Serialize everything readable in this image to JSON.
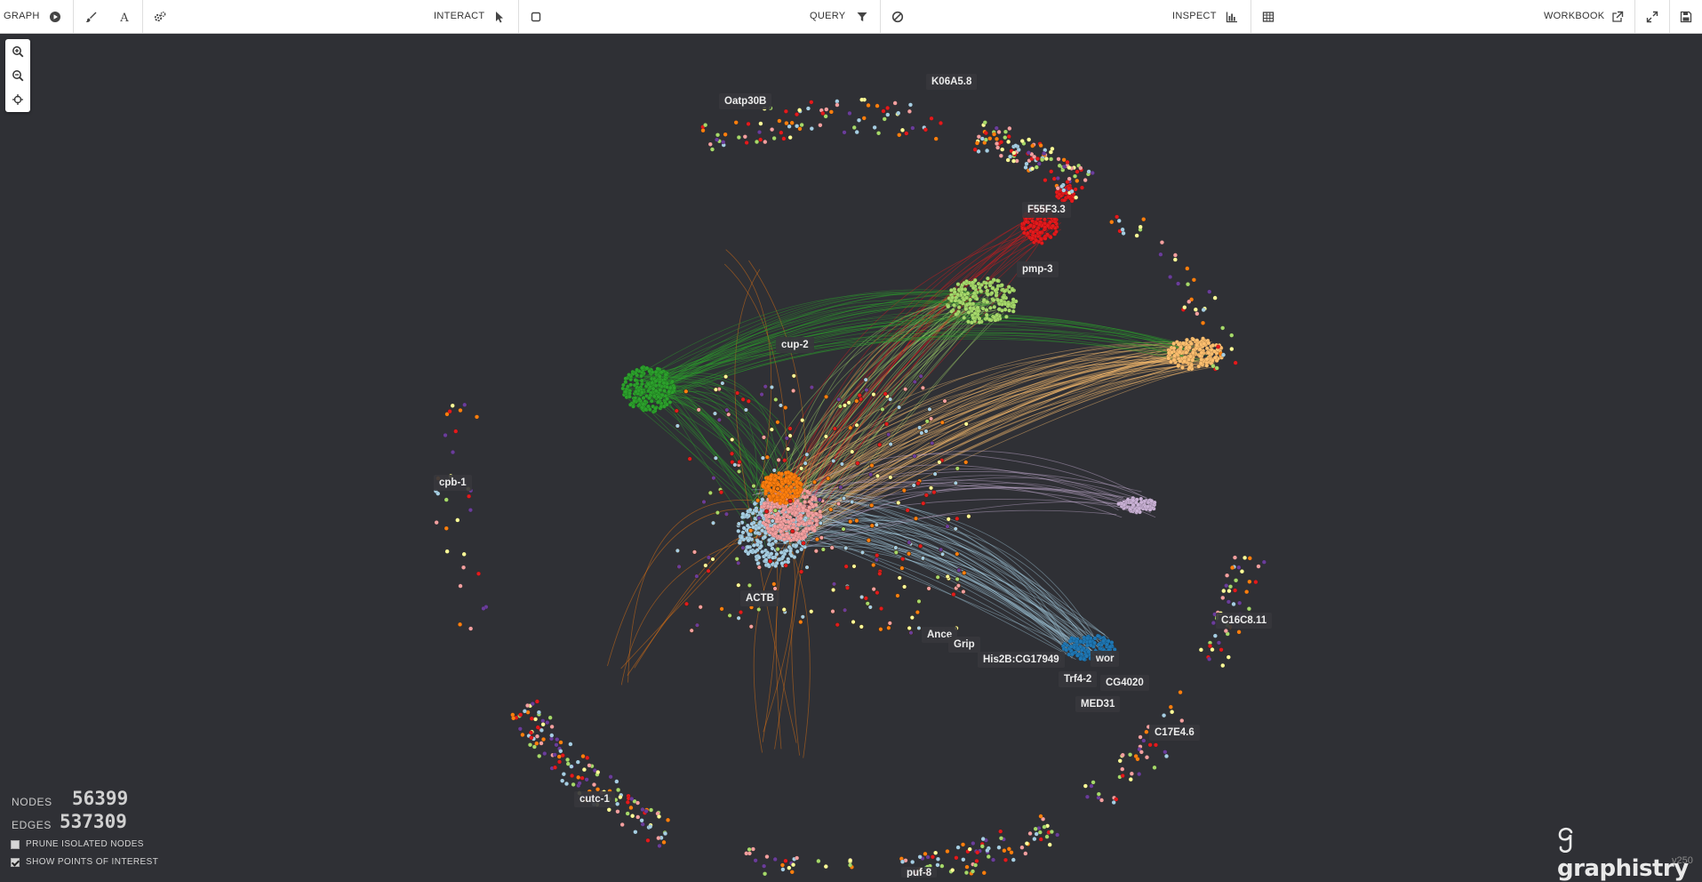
{
  "toolbar": {
    "graph": "GRAPH",
    "interact": "INTERACT",
    "query": "QUERY",
    "inspect": "INSPECT",
    "workbook": "WORKBOOK"
  },
  "icons": {
    "play": "play-circle-icon",
    "brush": "brush-icon",
    "text": "font-icon",
    "settings": "cogs-icon",
    "pointer": "pointer-icon",
    "select": "square-icon",
    "filter": "filter-icon",
    "exclude": "ban-icon",
    "histogram": "bar-chart-icon",
    "table": "table-icon",
    "external": "external-link-icon",
    "fullscreen": "expand-icon",
    "save": "save-icon",
    "zoom_in": "zoom-in-icon",
    "zoom_out": "zoom-out-icon",
    "center": "crosshair-icon"
  },
  "labels": [
    "K06A5.8",
    "Oatp30B",
    "F55F3.3",
    "pmp-3",
    "cup-2",
    "cpb-1",
    "ACTB",
    "C16C8.11",
    "Ance",
    "Grip",
    "His2B:CG17949",
    "wor",
    "Trf4-2",
    "CG4020",
    "MED31",
    "C17E4.6",
    "cutc-1",
    "puf-8"
  ],
  "stats": {
    "nodes_label": "NODES",
    "nodes_value": "56399",
    "edges_label": "EDGES",
    "edges_value": "537309"
  },
  "options": {
    "prune_label": "PRUNE ISOLATED NODES",
    "prune_checked": false,
    "poi_label": "SHOW POINTS OF INTEREST",
    "poi_checked": true
  },
  "brand": {
    "name": "graphistry",
    "version": "v250"
  },
  "colors": {
    "background": "#2f3035",
    "green": "#2ca02c",
    "light_green": "#a6d96a",
    "orange": "#ff7f0e",
    "pink": "#f4a0a0",
    "light_blue": "#a6cee3",
    "blue": "#1f77b4",
    "peach": "#fdbf6f",
    "red": "#e31a1c",
    "lavender": "#cab2d6",
    "purple": "#6a3d9a",
    "yellow": "#ffff99"
  }
}
